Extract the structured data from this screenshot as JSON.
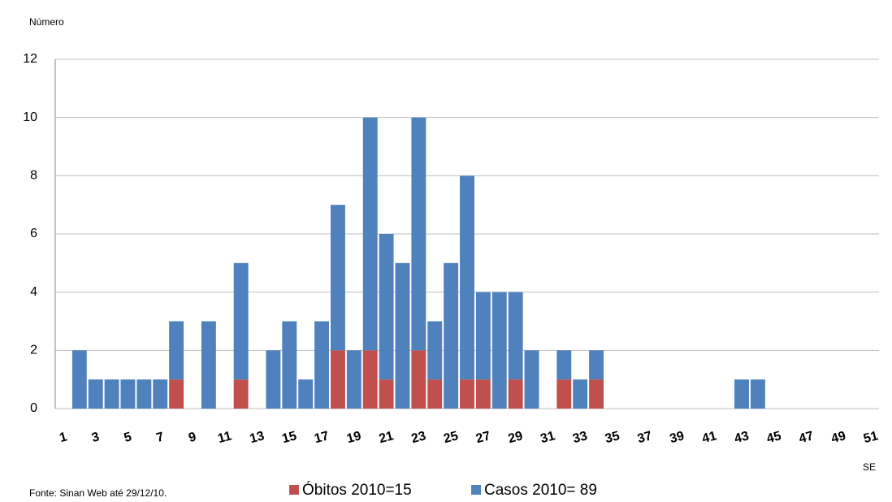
{
  "chart_data": {
    "type": "stacked_bar",
    "y_axis_label": "Número",
    "x_axis_label": "SE",
    "source": "Fonte: Sinan Web até 29/12/10.",
    "categories": [
      "1",
      null,
      "3",
      null,
      "5",
      null,
      "7",
      null,
      "9",
      null,
      "11",
      null,
      "13",
      null,
      "15",
      null,
      "17",
      null,
      "19",
      null,
      "21",
      null,
      "23",
      null,
      "25",
      null,
      "27",
      null,
      "29",
      null,
      "31",
      null,
      "33",
      null,
      "35",
      null,
      "37",
      null,
      "39",
      null,
      "41",
      null,
      "43",
      null,
      "45",
      null,
      "47",
      null,
      "49",
      null,
      "51"
    ],
    "series": [
      {
        "name": "Óbitos 2010=15",
        "color": "#c0504d",
        "values": [
          0,
          0,
          0,
          0,
          0,
          0,
          0,
          1,
          0,
          0,
          0,
          1,
          0,
          0,
          0,
          0,
          0,
          2,
          0,
          2,
          1,
          0,
          2,
          1,
          0,
          1,
          1,
          0,
          1,
          0,
          0,
          1,
          0,
          1,
          0,
          0,
          0,
          0,
          0,
          0,
          0,
          0,
          0,
          0,
          0,
          0,
          0,
          0,
          0,
          0,
          0
        ]
      },
      {
        "name": "Casos 2010= 89",
        "color": "#4f81bd",
        "values": [
          0,
          2,
          1,
          1,
          1,
          1,
          1,
          2,
          0,
          3,
          0,
          4,
          0,
          2,
          3,
          1,
          3,
          5,
          2,
          8,
          5,
          5,
          8,
          2,
          5,
          7,
          3,
          4,
          3,
          2,
          0,
          1,
          1,
          1,
          0,
          0,
          0,
          0,
          0,
          0,
          0,
          0,
          1,
          1,
          0,
          0,
          0,
          0,
          0,
          0,
          0
        ]
      }
    ],
    "ylim": [
      0,
      12
    ],
    "yticks": [
      0,
      2,
      4,
      6,
      8,
      10,
      12
    ],
    "grid": true
  }
}
